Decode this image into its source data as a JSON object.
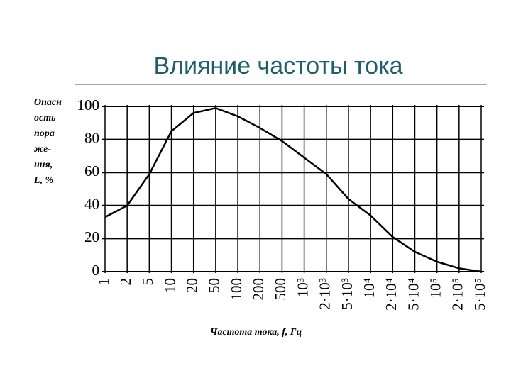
{
  "chart_data": {
    "type": "line",
    "title": "Влияние частоты тока",
    "ylabel_lines": [
      "Опасн",
      "ость",
      "пора",
      "же-",
      "ния,",
      "L, %"
    ],
    "xlabel": "Частота тока, f, Гц",
    "categories": [
      "1",
      "2",
      "5",
      "10",
      "20",
      "50",
      "100",
      "200",
      "500",
      "10³",
      "2·10³",
      "5·10³",
      "10⁴",
      "2·10⁴",
      "5·10⁴",
      "10⁵",
      "2·10⁵",
      "5·10⁵"
    ],
    "values": [
      33,
      40,
      59,
      85,
      96,
      99,
      94,
      87,
      79,
      69,
      59,
      44,
      34,
      21,
      12,
      6,
      2,
      0
    ],
    "color": "#000000",
    "ylim": [
      0,
      100
    ],
    "yticks": [
      0,
      20,
      40,
      60,
      80,
      100
    ],
    "grid": true
  }
}
